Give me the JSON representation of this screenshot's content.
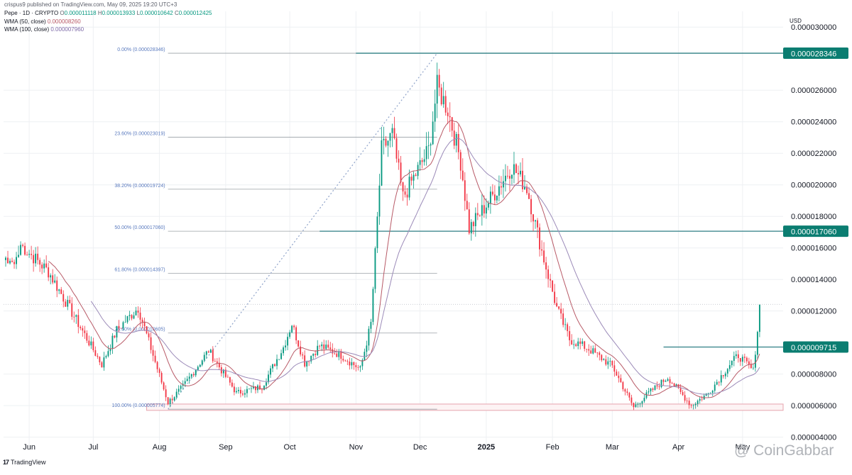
{
  "header": {
    "publisher": "crispus9 published on TradingView.com, May 09, 2025 19:20 UTC+3",
    "symbol": "Pepe · 1D · CRYPTO",
    "ohlc": [
      {
        "label": "O",
        "value": "0.000011118"
      },
      {
        "label": "H",
        "value": "0.000013933"
      },
      {
        "label": "L",
        "value": "0.000010642"
      },
      {
        "label": "C",
        "value": "0.000012425"
      }
    ],
    "wma1_label": "WMA (50, close)",
    "wma1_value": "0.000008260",
    "wma2_label": "WMA (100, close)",
    "wma2_value": "0.000007960",
    "currency": "USD"
  },
  "branding": {
    "tradingview_mark": "17",
    "tradingview": "TradingView",
    "watermark": "@ CoinGabbar"
  },
  "colors": {
    "up": "#089981",
    "down": "#f23645",
    "grid": "#eef0f3",
    "fib": "#9aa0a6",
    "fib_label": "#5b7bbf",
    "level": "#2f7f84",
    "badge": "#0b7d71",
    "wma1": "#b85a67",
    "wma2": "#9b8ab8",
    "trend": "#8fa3c9",
    "zone": "#e6a3ad"
  },
  "chart_data": {
    "type": "candlestick",
    "y_scale": "linear",
    "ylim": [
      3.4e-06,
      3.1e-05
    ],
    "x_range": [
      "2025-05-20",
      "2025-05-20"
    ],
    "x_period": [
      "2024-05-20",
      "2025-05-20"
    ],
    "grid": true,
    "y_ticks": [
      {
        "value": 4e-06,
        "label": "0.000004000"
      },
      {
        "value": 6e-06,
        "label": "0.000006000"
      },
      {
        "value": 8e-06,
        "label": "0.000008000"
      },
      {
        "value": 1.2e-05,
        "label": "0.000012000"
      },
      {
        "value": 1.4e-05,
        "label": "0.000014000"
      },
      {
        "value": 1.6e-05,
        "label": "0.000016000"
      },
      {
        "value": 1.8e-05,
        "label": "0.000018000"
      },
      {
        "value": 2e-05,
        "label": "0.000020000"
      },
      {
        "value": 2.2e-05,
        "label": "0.000022000"
      },
      {
        "value": 2.4e-05,
        "label": "0.000024000"
      },
      {
        "value": 2.6e-05,
        "label": "0.000026000"
      },
      {
        "value": 3e-05,
        "label": "0.000030000"
      }
    ],
    "x_ticks": [
      {
        "date": "2024-06-01",
        "label": "Jun"
      },
      {
        "date": "2024-07-01",
        "label": "Jul"
      },
      {
        "date": "2024-08-01",
        "label": "Aug"
      },
      {
        "date": "2024-09-01",
        "label": "Sep"
      },
      {
        "date": "2024-10-01",
        "label": "Oct"
      },
      {
        "date": "2024-11-01",
        "label": "Nov"
      },
      {
        "date": "2024-12-01",
        "label": "Dec"
      },
      {
        "date": "2025-01-01",
        "label": "2025"
      },
      {
        "date": "2025-02-01",
        "label": "Feb"
      },
      {
        "date": "2025-03-01",
        "label": "Mar"
      },
      {
        "date": "2025-04-01",
        "label": "Apr"
      },
      {
        "date": "2025-05-01",
        "label": "May"
      }
    ],
    "fibonacci": {
      "start_date": "2024-08-05",
      "end_date": "2024-12-09",
      "levels": [
        {
          "label": "0.00% (0.000028346)",
          "value": 2.8346e-05
        },
        {
          "label": "23.60% (0.000023019)",
          "value": 2.3019e-05
        },
        {
          "label": "38.20% (0.000019724)",
          "value": 1.9724e-05
        },
        {
          "label": "50.00% (0.000017060)",
          "value": 1.706e-05
        },
        {
          "label": "61.80% (0.000014397)",
          "value": 1.4397e-05
        },
        {
          "label": "78.60% (0.000010605)",
          "value": 1.0605e-05
        },
        {
          "label": "100.00% (0.000005774)",
          "value": 5.774e-06
        }
      ]
    },
    "horizontal_levels": [
      {
        "value": 2.8346e-05,
        "label": "0.000028346",
        "from_date": "2024-11-01"
      },
      {
        "value": 1.706e-05,
        "label": "0.000017060",
        "from_date": "2024-10-15"
      },
      {
        "value": 9.715e-06,
        "label": "0.000009715",
        "from_date": "2025-03-25"
      }
    ],
    "current_price": 1.2425e-05,
    "support_zone": {
      "from_date": "2024-07-26",
      "to_date": "2025-05-20",
      "low": 5.7e-06,
      "high": 6.1e-06
    },
    "trend_line": {
      "from_date": "2024-08-05",
      "from_value": 5.774e-06,
      "to_date": "2024-12-09",
      "to_value": 2.8346e-05
    },
    "key_points": [
      {
        "date": "2024-05-28",
        "value": 1.62e-05
      },
      {
        "date": "2024-06-10",
        "value": 1.45e-05
      },
      {
        "date": "2024-06-24",
        "value": 1.12e-05
      },
      {
        "date": "2024-07-05",
        "value": 8.6e-06
      },
      {
        "date": "2024-07-12",
        "value": 1.08e-05
      },
      {
        "date": "2024-07-22",
        "value": 1.22e-05
      },
      {
        "date": "2024-08-05",
        "value": 6.2e-06
      },
      {
        "date": "2024-08-12",
        "value": 7.2e-06
      },
      {
        "date": "2024-08-24",
        "value": 9.5e-06
      },
      {
        "date": "2024-09-06",
        "value": 6.8e-06
      },
      {
        "date": "2024-09-18",
        "value": 7.2e-06
      },
      {
        "date": "2024-09-28",
        "value": 9.7e-06
      },
      {
        "date": "2024-10-02",
        "value": 1.12e-05
      },
      {
        "date": "2024-10-08",
        "value": 8.7e-06
      },
      {
        "date": "2024-10-15",
        "value": 9.8e-06
      },
      {
        "date": "2024-10-25",
        "value": 9.2e-06
      },
      {
        "date": "2024-11-03",
        "value": 8.3e-06
      },
      {
        "date": "2024-11-08",
        "value": 1.12e-05
      },
      {
        "date": "2024-11-13",
        "value": 2.22e-05
      },
      {
        "date": "2024-11-18",
        "value": 2.32e-05
      },
      {
        "date": "2024-11-23",
        "value": 1.92e-05
      },
      {
        "date": "2024-12-01",
        "value": 2.12e-05
      },
      {
        "date": "2024-12-05",
        "value": 2.22e-05
      },
      {
        "date": "2024-12-09",
        "value": 2.62e-05
      },
      {
        "date": "2024-12-14",
        "value": 2.48e-05
      },
      {
        "date": "2024-12-20",
        "value": 2.15e-05
      },
      {
        "date": "2024-12-24",
        "value": 1.72e-05
      },
      {
        "date": "2025-01-05",
        "value": 1.95e-05
      },
      {
        "date": "2025-01-13",
        "value": 2.12e-05
      },
      {
        "date": "2025-01-20",
        "value": 1.98e-05
      },
      {
        "date": "2025-01-27",
        "value": 1.58e-05
      },
      {
        "date": "2025-02-03",
        "value": 1.22e-05
      },
      {
        "date": "2025-02-09",
        "value": 1.02e-05
      },
      {
        "date": "2025-02-18",
        "value": 9.6e-06
      },
      {
        "date": "2025-03-01",
        "value": 8.5e-06
      },
      {
        "date": "2025-03-11",
        "value": 5.9e-06
      },
      {
        "date": "2025-03-18",
        "value": 6.8e-06
      },
      {
        "date": "2025-03-27",
        "value": 7.8e-06
      },
      {
        "date": "2025-04-07",
        "value": 6e-06
      },
      {
        "date": "2025-04-15",
        "value": 6.8e-06
      },
      {
        "date": "2025-04-25",
        "value": 8.6e-06
      },
      {
        "date": "2025-04-29",
        "value": 9.2e-06
      },
      {
        "date": "2025-05-06",
        "value": 8.2e-06
      },
      {
        "date": "2025-05-08",
        "value": 1.08e-05
      },
      {
        "date": "2025-05-09",
        "value": 1.24e-05
      }
    ]
  }
}
